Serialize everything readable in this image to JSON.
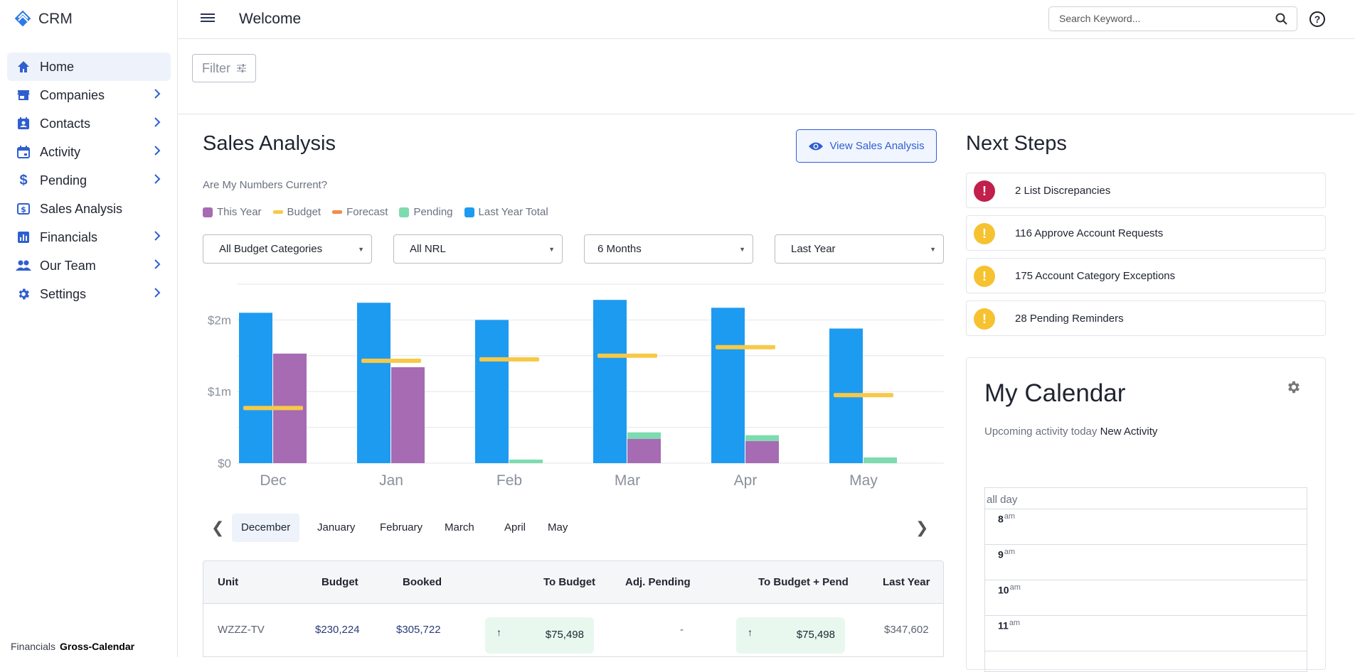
{
  "app": {
    "name": "CRM"
  },
  "sidebar": {
    "items": [
      {
        "label": "Home",
        "icon": "home-icon",
        "active": true,
        "chevron": false
      },
      {
        "label": "Companies",
        "icon": "store-icon",
        "chevron": true
      },
      {
        "label": "Contacts",
        "icon": "contact-card-icon",
        "chevron": true
      },
      {
        "label": "Activity",
        "icon": "calendar-icon",
        "chevron": true
      },
      {
        "label": "Pending",
        "icon": "dollar-icon",
        "chevron": true
      },
      {
        "label": "Sales Analysis",
        "icon": "money-box-icon",
        "chevron": false
      },
      {
        "label": "Financials",
        "icon": "bar-chart-icon",
        "chevron": true
      },
      {
        "label": "Our Team",
        "icon": "people-icon",
        "chevron": true
      },
      {
        "label": "Settings",
        "icon": "gear-icon",
        "chevron": true
      }
    ],
    "footer": {
      "left": "Financials",
      "right": "Gross-Calendar"
    }
  },
  "header": {
    "title": "Welcome",
    "search_placeholder": "Search Keyword..."
  },
  "filter": {
    "label": "Filter"
  },
  "sales": {
    "title": "Sales Analysis",
    "view_button": "View Sales Analysis",
    "question": "Are My Numbers Current?",
    "legend": [
      {
        "label": "This Year",
        "color": "#a66bb3",
        "shape": "square"
      },
      {
        "label": "Budget",
        "color": "#f7c948",
        "shape": "line"
      },
      {
        "label": "Forecast",
        "color": "#f28c48",
        "shape": "line"
      },
      {
        "label": "Pending",
        "color": "#7ddbb0",
        "shape": "square"
      },
      {
        "label": "Last Year Total",
        "color": "#1d9bf0",
        "shape": "square"
      }
    ],
    "selects": [
      "All Budget Categories",
      "All NRL",
      "6 Months",
      "Last Year"
    ],
    "months": [
      "December",
      "January",
      "February",
      "March",
      "April",
      "May"
    ],
    "table": {
      "headers": [
        "Unit",
        "Budget",
        "Booked",
        "To Budget",
        "Adj. Pending",
        "To Budget + Pend",
        "Last Year"
      ],
      "rows": [
        {
          "unit": "WZZZ-TV",
          "budget": "$230,224",
          "booked": "$305,722",
          "to_budget": "$75,498",
          "adj_pending": "-",
          "to_budget_pend": "$75,498",
          "last_year": "$347,602"
        }
      ]
    }
  },
  "chart_data": {
    "type": "bar",
    "categories": [
      "Dec",
      "Jan",
      "Feb",
      "Mar",
      "Apr",
      "May"
    ],
    "ylim": [
      0,
      2500000
    ],
    "yticks": [
      0,
      1000000,
      2000000
    ],
    "ytick_labels": [
      "$0",
      "$1m",
      "$2m"
    ],
    "series": [
      {
        "name": "Last Year Total",
        "values": [
          2100000,
          2240000,
          2000000,
          2280000,
          2170000,
          1880000
        ]
      },
      {
        "name": "This Year",
        "values": [
          1530000,
          1340000,
          0,
          340000,
          310000,
          0
        ]
      },
      {
        "name": "Pending",
        "values": [
          0,
          0,
          50000,
          90000,
          80000,
          80000
        ]
      },
      {
        "name": "Budget",
        "values": [
          770000,
          1430000,
          1450000,
          1500000,
          1620000,
          950000
        ]
      }
    ],
    "grid": true
  },
  "next_steps": {
    "title": "Next Steps",
    "items": [
      {
        "text": "2 List Discrepancies",
        "severity": "error",
        "color": "#c0204b"
      },
      {
        "text": "116 Approve Account Requests",
        "severity": "warning",
        "color": "#f6c230"
      },
      {
        "text": "175 Account Category Exceptions",
        "severity": "warning",
        "color": "#f6c230"
      },
      {
        "text": "28 Pending Reminders",
        "severity": "warning",
        "color": "#f6c230"
      }
    ]
  },
  "calendar": {
    "title": "My Calendar",
    "subtitle": "Upcoming activity today",
    "new_activity": "New Activity",
    "all_day": "all day",
    "hours": [
      {
        "h": "8",
        "ampm": "am"
      },
      {
        "h": "9",
        "ampm": "am"
      },
      {
        "h": "10",
        "ampm": "am"
      },
      {
        "h": "11",
        "ampm": "am"
      }
    ]
  }
}
